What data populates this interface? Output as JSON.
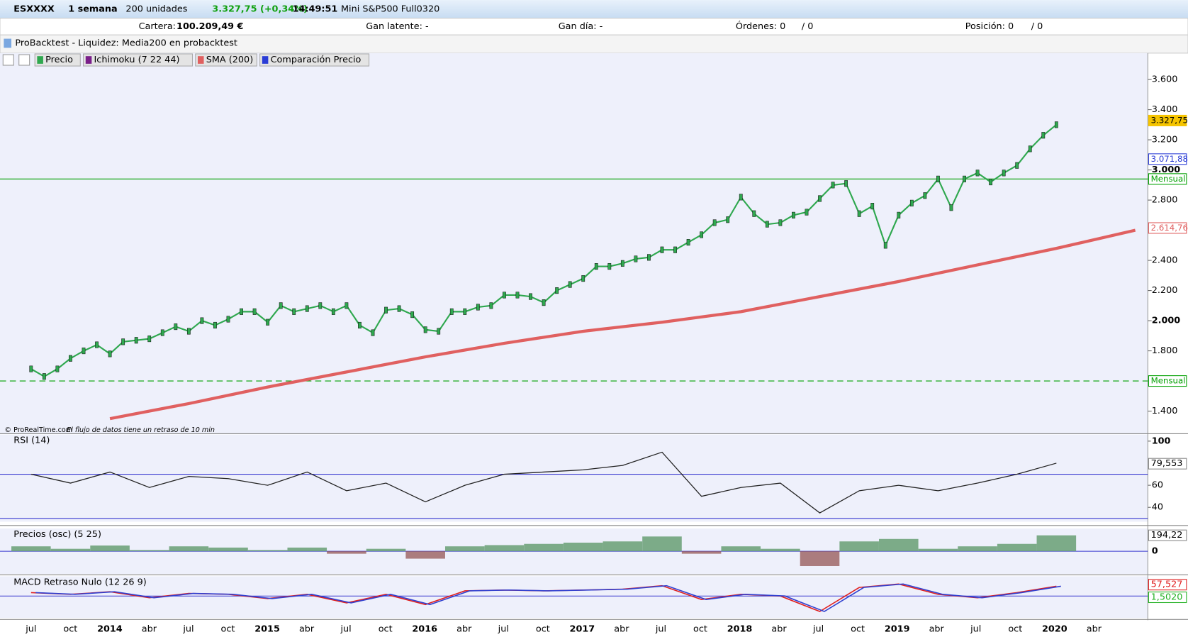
{
  "toolbar": {
    "instrument": "ESXXXX",
    "period": "1 semana",
    "units": "200 unidades",
    "price": "3.327,75 (+0,34%)",
    "time": "14:49:51",
    "contract": "Mini S&P500 Full0320"
  },
  "account": {
    "cartera_label": "Cartera:",
    "cartera": "100.209,49 €",
    "gan_latente": "Gan latente: -",
    "gan_dia": "Gan día: -",
    "ordenes": "Órdenes: 0",
    "ordenes_total": "/ 0",
    "posicion": "Posición: 0",
    "posicion_total": "/ 0"
  },
  "backtest": "ProBacktest - Liquidez: Media200 en probacktest",
  "main_panel": {
    "indicators": [
      "Precio",
      "Ichimoku (7 22 44)",
      "SMA (200)",
      "Comparación Precio"
    ],
    "ylim": [
      1250,
      3775
    ],
    "yticks": [
      {
        "value": 3600,
        "label": "3.600"
      },
      {
        "value": 3400,
        "label": "3.400"
      },
      {
        "value": 3200,
        "label": "3.200"
      },
      {
        "value": 3000,
        "label": "3.000"
      },
      {
        "value": 2800,
        "label": "2.800"
      },
      {
        "value": 2400,
        "label": "2.400"
      },
      {
        "value": 2200,
        "label": "2.200"
      },
      {
        "value": 2000,
        "label": "2.000"
      },
      {
        "value": 1800,
        "label": "1.800"
      },
      {
        "value": 1400,
        "label": "1.400"
      }
    ],
    "price_labels": [
      {
        "value": 3327.75,
        "label": "3.327,75",
        "color": "#f5c400"
      },
      {
        "value": 3071.88,
        "label": "3.071,88",
        "color": "#2a3cd6"
      },
      {
        "value": 2940,
        "label": "Mensual",
        "color": "#00a000"
      },
      {
        "value": 2614.76,
        "label": "2.614,76",
        "color": "#e06060"
      },
      {
        "value": 1600,
        "label": "Mensual",
        "color": "#00a000"
      }
    ],
    "notice": [
      "© ProRealTime.com",
      "El flujo de datos tiene un retraso de 10 min"
    ],
    "price": [
      1680,
      1630,
      1680,
      1750,
      1800,
      1840,
      1780,
      1860,
      1870,
      1880,
      1920,
      1960,
      1930,
      2000,
      1970,
      2010,
      2060,
      2060,
      1990,
      2100,
      2060,
      2080,
      2100,
      2060,
      2100,
      1970,
      1920,
      2070,
      2080,
      2040,
      1940,
      1930,
      2060,
      2060,
      2090,
      2100,
      2170,
      2170,
      2160,
      2120,
      2200,
      2240,
      2280,
      2360,
      2360,
      2380,
      2410,
      2420,
      2470,
      2470,
      2520,
      2570,
      2650,
      2670,
      2820,
      2710,
      2640,
      2650,
      2700,
      2720,
      2810,
      2900,
      2910,
      2710,
      2760,
      2500,
      2700,
      2780,
      2830,
      2940,
      2750,
      2940,
      2980,
      2920,
      2980,
      3030,
      3140,
      3230,
      3300
    ],
    "sma": [
      1350,
      1450,
      1560,
      1660,
      1760,
      1850,
      1930,
      1990,
      2060,
      2160,
      2260,
      2370,
      2480,
      2600
    ]
  },
  "rsi_panel": {
    "name": "RSI (14)",
    "ylim": [
      27,
      106
    ],
    "yticks": [
      100,
      60,
      40
    ],
    "levels": [
      70,
      30
    ],
    "value_label": {
      "value": 79.553,
      "label": "79,553"
    },
    "values": [
      70,
      62,
      72,
      58,
      68,
      66,
      60,
      72,
      55,
      62,
      45,
      60,
      70,
      72,
      74,
      78,
      90,
      50,
      58,
      62,
      35,
      55,
      60,
      55,
      62,
      70,
      80
    ]
  },
  "osc_panel": {
    "name": "Precios (osc) (5 25)",
    "ylim": [
      -277,
      277
    ],
    "yticks": [
      0
    ],
    "value_label": {
      "value": 194.22,
      "label": "194,22"
    },
    "values": [
      60,
      30,
      70,
      15,
      60,
      45,
      15,
      45,
      -30,
      30,
      -90,
      60,
      75,
      90,
      105,
      120,
      180,
      -30,
      60,
      30,
      -180,
      120,
      150,
      30,
      60,
      90,
      194
    ]
  },
  "macd_panel": {
    "name": "MACD Retraso Nulo (12 26 9)",
    "ylim": [
      -128,
      115
    ],
    "value_labels": [
      {
        "value": 57.527,
        "label": "57,527",
        "color": "#e02020"
      },
      {
        "value": 1.502,
        "label": "1,5020",
        "color": "#20b020"
      }
    ],
    "values": [
      20,
      10,
      25,
      -10,
      15,
      10,
      -15,
      10,
      -40,
      10,
      -50,
      30,
      35,
      30,
      35,
      40,
      60,
      -20,
      10,
      0,
      -90,
      50,
      70,
      10,
      -10,
      20,
      57
    ]
  },
  "x_axis": [
    "jul",
    "oct",
    "2014",
    "abr",
    "jul",
    "oct",
    "2015",
    "abr",
    "jul",
    "oct",
    "2016",
    "abr",
    "jul",
    "oct",
    "2017",
    "abr",
    "jul",
    "oct",
    "2018",
    "abr",
    "jul",
    "oct",
    "2019",
    "abr",
    "jul",
    "oct",
    "2020",
    "abr"
  ]
}
